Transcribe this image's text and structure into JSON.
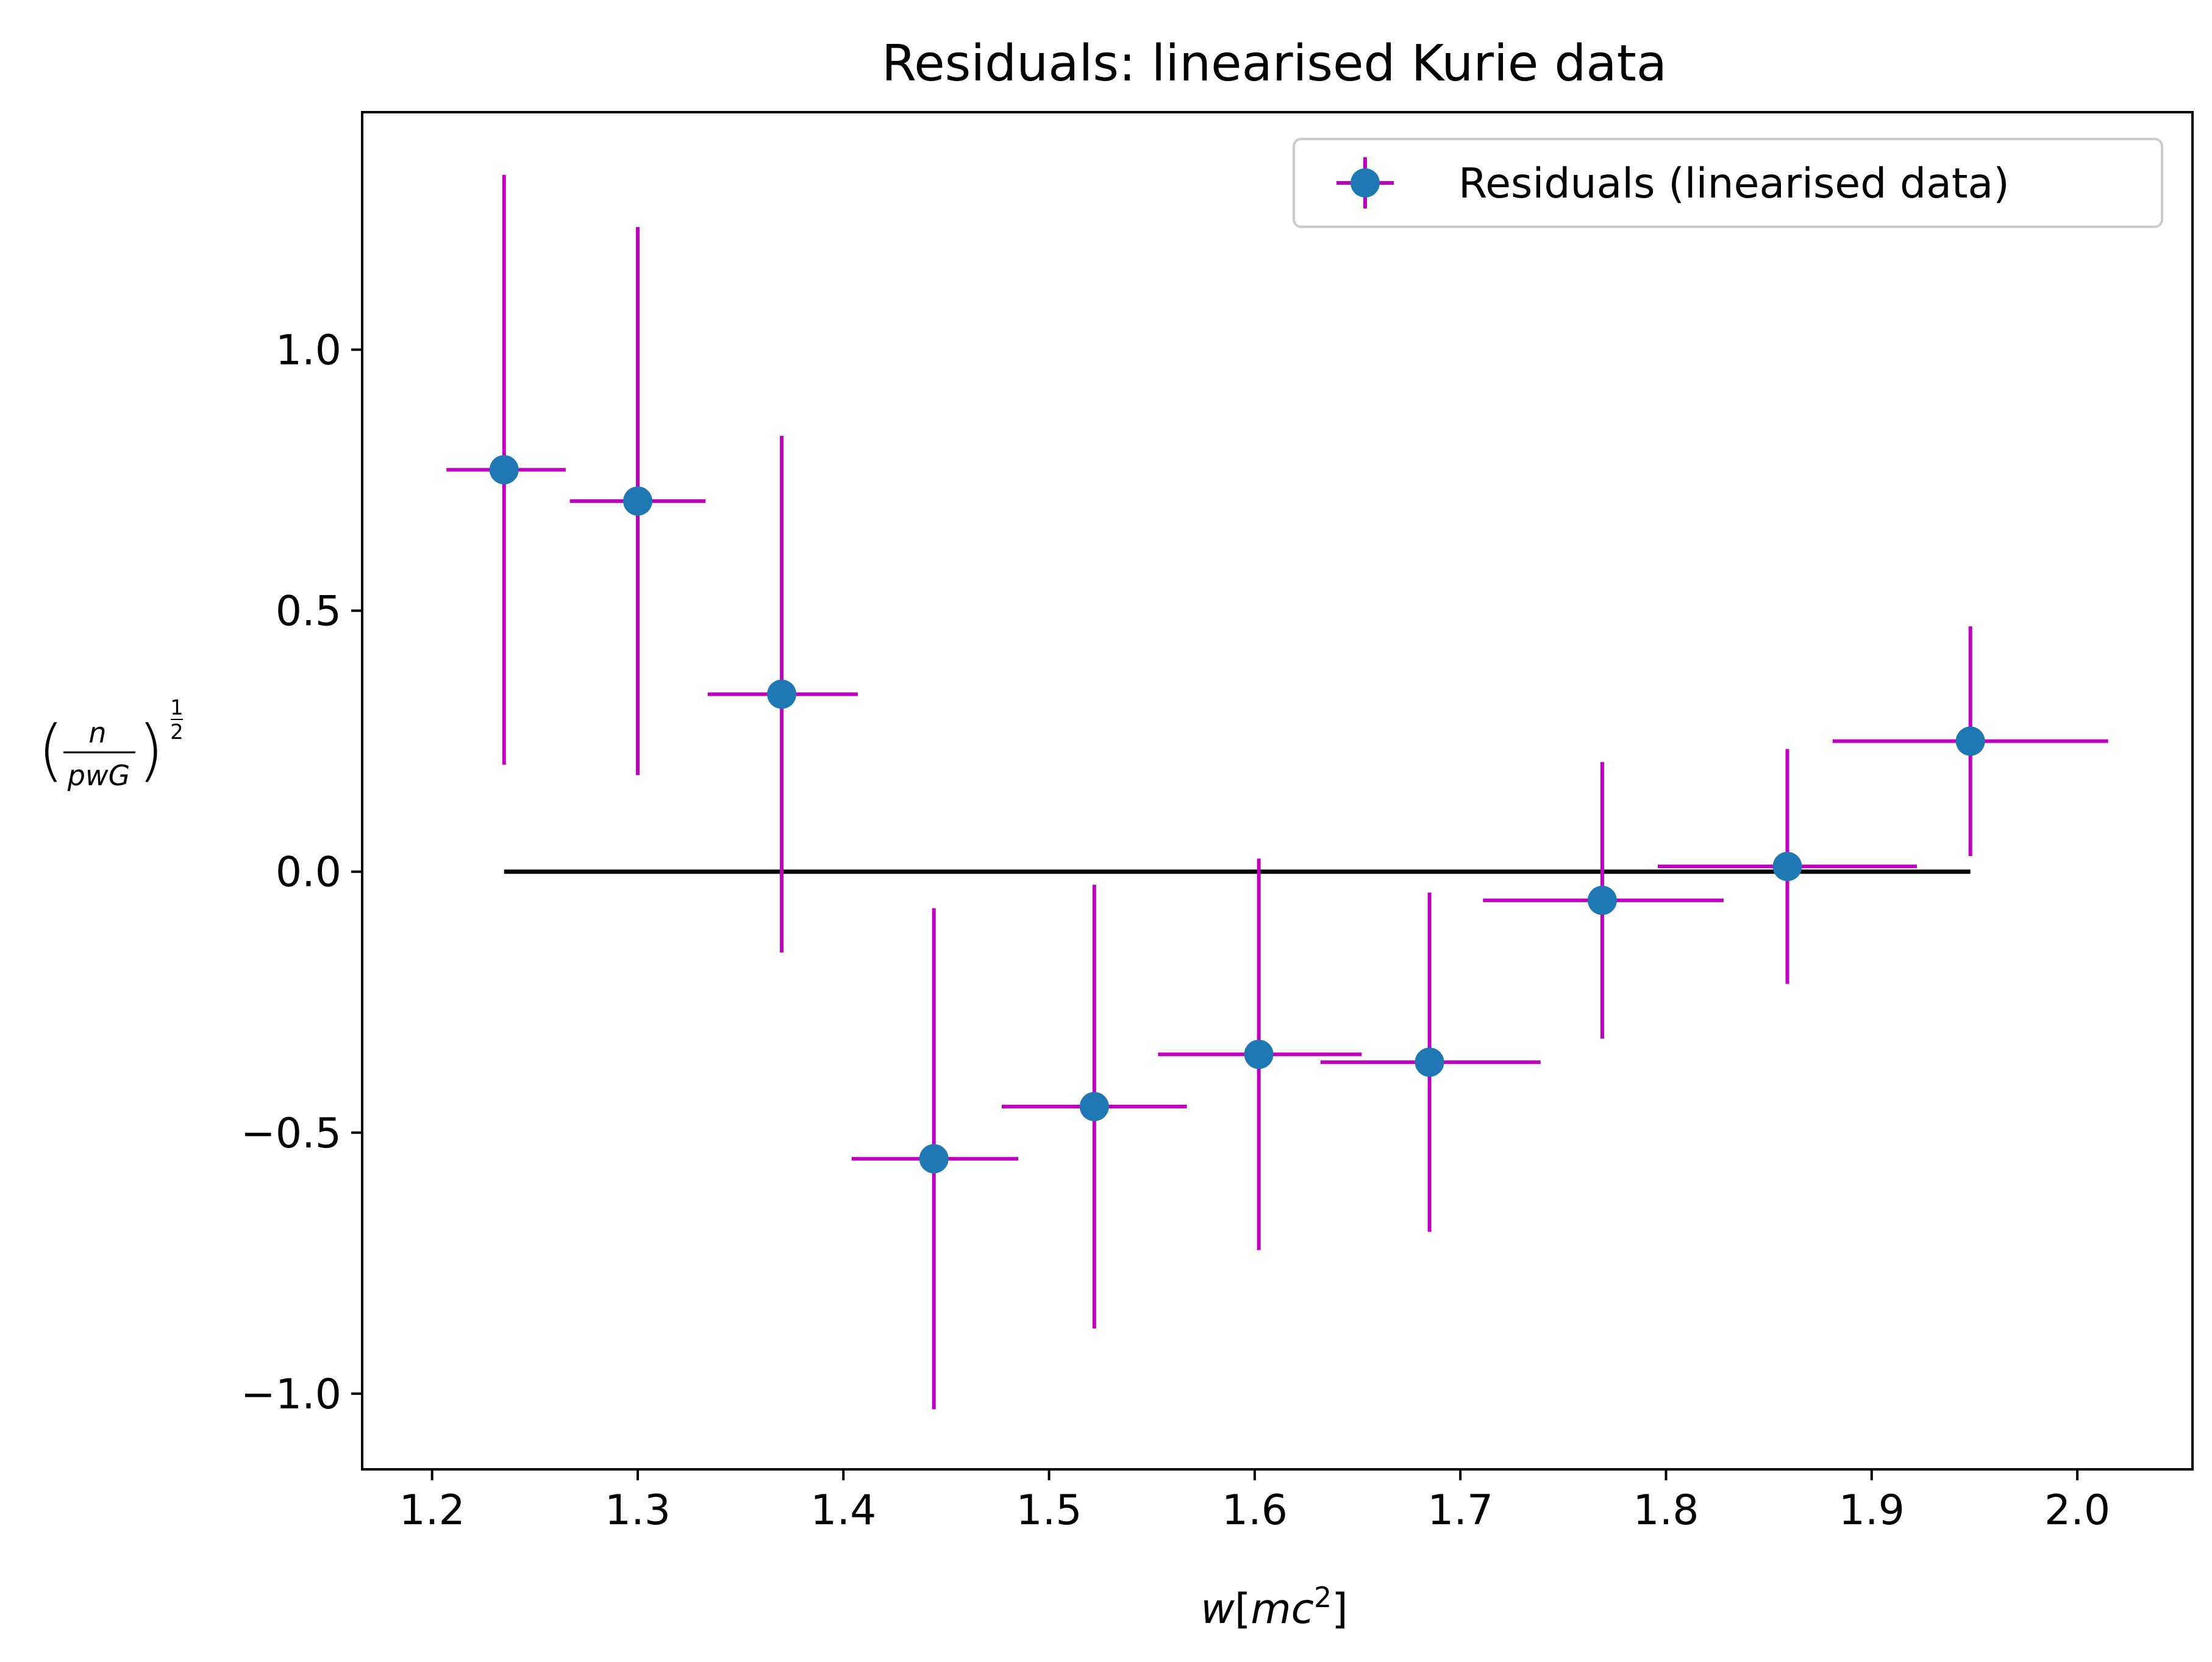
{
  "chart_data": {
    "type": "scatter",
    "title": "Residuals: linearised Kurie data",
    "xlabel": "w[mc²]",
    "ylabel": "(n/(pwG))^(1/2)",
    "xlim": [
      1.166,
      2.056
    ],
    "ylim": [
      -1.145,
      1.455
    ],
    "x_ticks": [
      "1.2",
      "1.3",
      "1.4",
      "1.5",
      "1.6",
      "1.7",
      "1.8",
      "1.9",
      "2.0"
    ],
    "y_ticks": [
      "−1.0",
      "−0.5",
      "0.0",
      "0.5",
      "1.0"
    ],
    "grid": false,
    "legend_position": "top-right",
    "series": [
      {
        "name": "Residuals (linearised data)",
        "marker_color": "#1f77b4",
        "errorbar_color": "#bf00bf",
        "points": [
          {
            "x": 1.235,
            "y": 0.77,
            "xerr_low": 0.028,
            "xerr_high": 0.03,
            "yerr": 0.565
          },
          {
            "x": 1.3,
            "y": 0.71,
            "xerr_low": 0.033,
            "xerr_high": 0.033,
            "yerr": 0.525
          },
          {
            "x": 1.37,
            "y": 0.34,
            "xerr_low": 0.036,
            "xerr_high": 0.037,
            "yerr": 0.495
          },
          {
            "x": 1.444,
            "y": -0.55,
            "xerr_low": 0.04,
            "xerr_high": 0.041,
            "yerr": 0.48
          },
          {
            "x": 1.522,
            "y": -0.45,
            "xerr_low": 0.045,
            "xerr_high": 0.045,
            "yerr": 0.425
          },
          {
            "x": 1.602,
            "y": -0.35,
            "xerr_low": 0.049,
            "xerr_high": 0.05,
            "yerr": 0.375
          },
          {
            "x": 1.685,
            "y": -0.365,
            "xerr_low": 0.053,
            "xerr_high": 0.054,
            "yerr": 0.325
          },
          {
            "x": 1.769,
            "y": -0.055,
            "xerr_low": 0.058,
            "xerr_high": 0.059,
            "yerr": 0.265
          },
          {
            "x": 1.859,
            "y": 0.01,
            "xerr_low": 0.063,
            "xerr_high": 0.063,
            "yerr": 0.225
          },
          {
            "x": 1.948,
            "y": 0.25,
            "xerr_low": 0.067,
            "xerr_high": 0.067,
            "yerr": 0.22
          }
        ]
      }
    ],
    "reference_line": {
      "y": 0.0,
      "x_start": 1.235,
      "x_end": 1.948,
      "color": "#000000"
    }
  }
}
